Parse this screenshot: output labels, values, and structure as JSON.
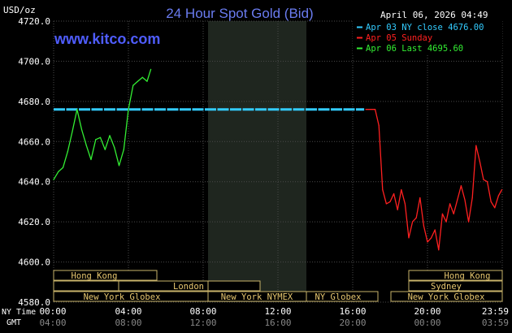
{
  "title": "24 Hour Spot Gold (Bid)",
  "unit_label": "USD/oz",
  "timestamp": "April 06, 2026 04:49",
  "website": "www.kitco.com",
  "legend": [
    {
      "label": "Apr 03 NY close 4676.00",
      "color": "#33ccff"
    },
    {
      "label": "Apr 05 Sunday",
      "color": "#ff2020"
    },
    {
      "label": "Apr 06 Last 4695.60",
      "color": "#33ee33"
    }
  ],
  "row_labels": {
    "ny": "NY Time",
    "gmt": "GMT"
  },
  "ny_ticks": [
    "00:00",
    "04:00",
    "08:00",
    "12:00",
    "16:00",
    "20:00",
    "23:59"
  ],
  "gmt_ticks": [
    "04:00",
    "08:00",
    "12:00",
    "16:00",
    "20:00",
    "00:00",
    "03:59"
  ],
  "sessions": [
    "Hong Kong",
    "London",
    "New York Globex",
    "New York NYMEX",
    "NY Globex",
    "Hong Kong",
    "Sydney",
    "New York Globex"
  ],
  "chart_data": {
    "type": "line",
    "title": "24 Hour Spot Gold (Bid)",
    "ylabel": "USD/oz",
    "xlabel": "NY Time",
    "ylim": [
      4580,
      4720
    ],
    "yticks": [
      4580,
      4600,
      4620,
      4640,
      4660,
      4680,
      4700,
      4720
    ],
    "xlim_hours": [
      0,
      24
    ],
    "grid": true,
    "legend_position": "top-right",
    "reference_line": {
      "name": "Apr 03 NY close 4676.00",
      "value": 4676.0,
      "x_range": [
        0,
        16.7
      ],
      "color": "#33ccff"
    },
    "series": [
      {
        "name": "Apr 06 Last 4695.60",
        "color": "#33ee33",
        "x": [
          0.0,
          0.25,
          0.5,
          0.75,
          1.0,
          1.25,
          1.5,
          1.75,
          2.0,
          2.25,
          2.5,
          2.75,
          3.0,
          3.25,
          3.5,
          3.75,
          4.0,
          4.25,
          4.5,
          4.75,
          5.0,
          5.2
        ],
        "y": [
          4641,
          4645,
          4647,
          4655,
          4665,
          4676,
          4666,
          4658,
          4651,
          4661,
          4662,
          4656,
          4663,
          4657,
          4648,
          4656,
          4676,
          4688,
          4690,
          4692,
          4690,
          4696
        ]
      },
      {
        "name": "Apr 05 Sunday",
        "color": "#ff2020",
        "x": [
          16.7,
          17.2,
          17.4,
          17.6,
          17.8,
          18.0,
          18.2,
          18.4,
          18.6,
          18.8,
          19.0,
          19.2,
          19.4,
          19.6,
          19.8,
          20.0,
          20.2,
          20.4,
          20.6,
          20.8,
          21.0,
          21.2,
          21.4,
          21.6,
          21.8,
          22.0,
          22.2,
          22.4,
          22.6,
          22.8,
          23.0,
          23.2,
          23.4,
          23.6,
          23.8,
          23.98
        ],
        "y": [
          4676,
          4676,
          4668,
          4636,
          4629,
          4630,
          4634,
          4626,
          4636,
          4629,
          4612,
          4620,
          4622,
          4632,
          4618,
          4610,
          4612,
          4616,
          4606,
          4624,
          4620,
          4629,
          4624,
          4631,
          4638,
          4631,
          4620,
          4632,
          4658,
          4650,
          4641,
          4640,
          4630,
          4627,
          4633,
          4636
        ]
      }
    ]
  }
}
